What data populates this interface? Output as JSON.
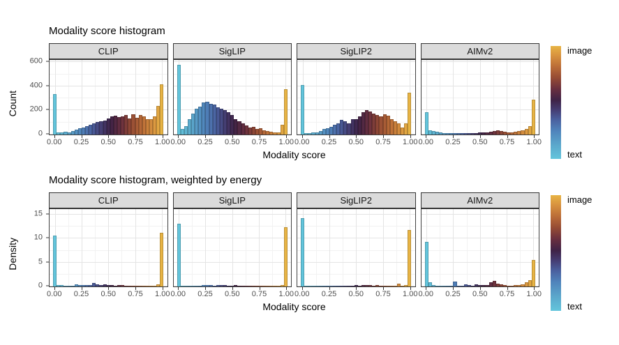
{
  "palette": {
    "stops": [
      {
        "t": 0.0,
        "c": "#63C5DC"
      },
      {
        "t": 0.12,
        "c": "#5BA8CC"
      },
      {
        "t": 0.25,
        "c": "#4F83BB"
      },
      {
        "t": 0.35,
        "c": "#4A5F9E"
      },
      {
        "t": 0.44,
        "c": "#453B70"
      },
      {
        "t": 0.52,
        "c": "#3F2347"
      },
      {
        "t": 0.62,
        "c": "#692F3F"
      },
      {
        "t": 0.72,
        "c": "#964C34"
      },
      {
        "t": 0.82,
        "c": "#BC6E38"
      },
      {
        "t": 0.92,
        "c": "#D9943F"
      },
      {
        "t": 1.0,
        "c": "#E8B445"
      }
    ]
  },
  "chart_data": [
    {
      "type": "bar",
      "title": "Modality score histogram",
      "xlabel": "Modality score",
      "ylabel": "Count",
      "ylim": [
        0,
        620
      ],
      "yticks": [
        0,
        200,
        400,
        600
      ],
      "xticks": [
        0,
        0.25,
        0.5,
        0.75,
        1
      ],
      "xtick_labels": [
        "0.00",
        "0.25",
        "0.50",
        "0.75",
        "1.00"
      ],
      "x_range": [
        -0.05,
        1.05
      ],
      "legend": {
        "top": "image",
        "bottom": "text"
      },
      "facets": [
        {
          "name": "CLIP",
          "values": [
            335,
            20,
            18,
            25,
            20,
            30,
            42,
            52,
            58,
            68,
            82,
            95,
            105,
            112,
            118,
            132,
            150,
            155,
            145,
            152,
            160,
            132,
            168,
            140,
            165,
            148,
            130,
            125,
            150,
            240,
            420
          ]
        },
        {
          "name": "SigLIP",
          "values": [
            580,
            45,
            70,
            130,
            175,
            215,
            232,
            265,
            270,
            255,
            248,
            225,
            213,
            200,
            185,
            160,
            130,
            110,
            90,
            75,
            58,
            62,
            45,
            55,
            35,
            30,
            25,
            20,
            18,
            80,
            378
          ]
        },
        {
          "name": "SigLIP2",
          "values": [
            410,
            10,
            12,
            15,
            20,
            30,
            45,
            55,
            65,
            80,
            90,
            120,
            113,
            95,
            130,
            125,
            150,
            185,
            200,
            190,
            175,
            160,
            150,
            170,
            155,
            130,
            110,
            95,
            60,
            90,
            350
          ]
        },
        {
          "name": "AIMv2",
          "values": [
            185,
            35,
            28,
            22,
            18,
            14,
            12,
            10,
            10,
            12,
            10,
            10,
            12,
            12,
            14,
            16,
            18,
            20,
            24,
            28,
            32,
            28,
            22,
            18,
            16,
            22,
            28,
            32,
            45,
            70,
            292
          ]
        }
      ]
    },
    {
      "type": "bar",
      "title": "Modality score histogram, weighted by energy",
      "xlabel": "Modality score",
      "ylabel": "Density",
      "ylim": [
        0,
        16.2
      ],
      "yticks": [
        0,
        5,
        10,
        15
      ],
      "xticks": [
        0,
        0.25,
        0.5,
        0.75,
        1
      ],
      "xtick_labels": [
        "0.00",
        "0.25",
        "0.50",
        "0.75",
        "1.00"
      ],
      "x_range": [
        -0.05,
        1.05
      ],
      "legend": {
        "top": "image",
        "bottom": "text"
      },
      "facets": [
        {
          "name": "CLIP",
          "values": [
            10.6,
            0.3,
            0.3,
            0.05,
            0.15,
            0.1,
            0.5,
            0.25,
            0.3,
            0.35,
            0.3,
            0.7,
            0.4,
            0.35,
            0.4,
            0.3,
            0.35,
            0.2,
            0.25,
            0.25,
            0.2,
            0.15,
            0.1,
            0.1,
            0.1,
            0.1,
            0.15,
            0.2,
            0.15,
            0.4,
            11.3
          ]
        },
        {
          "name": "SigLIP",
          "values": [
            13.1,
            0.1,
            0.05,
            0.2,
            0.1,
            0.15,
            0.15,
            0.3,
            0.3,
            0.25,
            0.2,
            0.25,
            0.3,
            0.25,
            0.2,
            0.15,
            0.35,
            0.1,
            0.1,
            0.05,
            0.05,
            0.05,
            0.05,
            0.05,
            0.1,
            0.1,
            0.1,
            0.05,
            0.1,
            0.3,
            12.4
          ]
        },
        {
          "name": "SigLIP2",
          "values": [
            14.3,
            0.15,
            0.02,
            0.02,
            0.05,
            0.1,
            0.1,
            0.1,
            0.1,
            0.1,
            0.1,
            0.15,
            0.15,
            0.2,
            0.2,
            0.25,
            0.2,
            0.25,
            0.3,
            0.25,
            0.2,
            0.25,
            0.2,
            0.15,
            0.1,
            0.1,
            0.05,
            0.55,
            0.1,
            0.35,
            11.8
          ]
        },
        {
          "name": "AIMv2",
          "values": [
            9.3,
            0.9,
            0.3,
            0.2,
            0.15,
            0.1,
            0.1,
            0.1,
            1.0,
            0.15,
            0.1,
            0.4,
            0.35,
            0.2,
            0.4,
            0.35,
            0.3,
            0.35,
            0.9,
            1.1,
            0.6,
            0.4,
            0.3,
            0.2,
            0.15,
            0.3,
            0.25,
            0.5,
            0.9,
            1.35,
            5.6
          ]
        }
      ]
    }
  ]
}
